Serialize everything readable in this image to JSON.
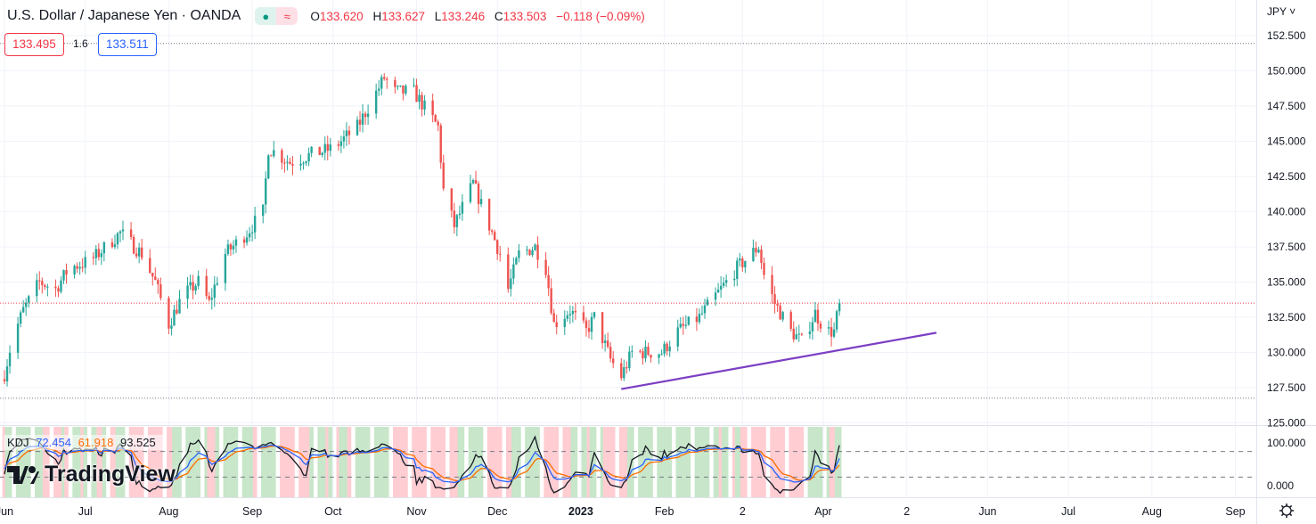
{
  "header": {
    "title": "U.S. Dollar / Japanese Yen · OANDA",
    "status_icons": [
      "market-open-dot-icon",
      "delayed-data-icon"
    ],
    "ohlc": {
      "o_label": "O",
      "o": "133.620",
      "h_label": "H",
      "h": "133.627",
      "l_label": "L",
      "l": "133.246",
      "c_label": "C",
      "c": "133.503",
      "change": "−0.118 (−0.09%)"
    }
  },
  "quote": {
    "sell": "133.495",
    "spread": "1.6",
    "buy": "133.511"
  },
  "currency": "JPY",
  "indicator": {
    "name": "KDJ",
    "k": "72.454",
    "d": "61.918",
    "j": "93.525"
  },
  "branding": "TradingView",
  "colors": {
    "up": "#26a69a",
    "down": "#ef5350",
    "k": "#2962ff",
    "d": "#ff6d00",
    "j": "#131722",
    "trendline": "#7b3fc4",
    "bull_bg": "#c8e6c9",
    "bear_bg": "#ffcdd2"
  },
  "chart_data": {
    "type": "candlestick",
    "price_axis": {
      "ticks": [
        "152.500",
        "150.000",
        "147.500",
        "145.000",
        "142.500",
        "140.000",
        "137.500",
        "135.000",
        "132.500",
        "130.000",
        "127.500",
        "125.000"
      ],
      "range": [
        125,
        152.5
      ]
    },
    "kdj_axis": {
      "ticks": [
        "100.000",
        "0.000"
      ]
    },
    "time_axis": {
      "ticks": [
        [
          "Jun",
          "2022-06-01"
        ],
        [
          "Jul",
          "2022-07-01"
        ],
        [
          "Aug",
          "2022-08-01"
        ],
        [
          "Sep",
          "2022-09-01"
        ],
        [
          "Oct",
          "2022-10-01"
        ],
        [
          "Nov",
          "2022-11-01"
        ],
        [
          "Dec",
          "2022-12-01"
        ],
        [
          "2023",
          "2023-01-01"
        ],
        [
          "Feb",
          "2023-02-01"
        ],
        [
          "2",
          "2023-03-02"
        ],
        [
          "Apr",
          "2023-04-01"
        ],
        [
          "2",
          "2023-05-02"
        ],
        [
          "Jun",
          "2023-06-01"
        ],
        [
          "Jul",
          "2023-07-01"
        ],
        [
          "Aug",
          "2023-08-01"
        ],
        [
          "Sep",
          "2023-09-01"
        ]
      ]
    },
    "close_path": [
      [
        "2022-06-01",
        128.5
      ],
      [
        "2022-06-04",
        131
      ],
      [
        "2022-06-08",
        133
      ],
      [
        "2022-06-14",
        135
      ],
      [
        "2022-06-20",
        134.5
      ],
      [
        "2022-06-25",
        136
      ],
      [
        "2022-07-03",
        136.5
      ],
      [
        "2022-07-14",
        138.5
      ],
      [
        "2022-07-22",
        137
      ],
      [
        "2022-07-27",
        135
      ],
      [
        "2022-08-01",
        132
      ],
      [
        "2022-08-06",
        134
      ],
      [
        "2022-08-12",
        135
      ],
      [
        "2022-08-16",
        133.5
      ],
      [
        "2022-08-22",
        137
      ],
      [
        "2022-08-30",
        138.5
      ],
      [
        "2022-09-05",
        140
      ],
      [
        "2022-09-07",
        144.5
      ],
      [
        "2022-09-15",
        143.5
      ],
      [
        "2022-09-22",
        144
      ],
      [
        "2022-10-01",
        144.5
      ],
      [
        "2022-10-10",
        146
      ],
      [
        "2022-10-20",
        149.5
      ],
      [
        "2022-10-24",
        148.5
      ],
      [
        "2022-10-31",
        148.5
      ],
      [
        "2022-11-09",
        146
      ],
      [
        "2022-11-11",
        141.5
      ],
      [
        "2022-11-15",
        139
      ],
      [
        "2022-11-22",
        142
      ],
      [
        "2022-11-28",
        139
      ],
      [
        "2022-12-02",
        137
      ],
      [
        "2022-12-05",
        134.5
      ],
      [
        "2022-12-09",
        137
      ],
      [
        "2022-12-15",
        137.5
      ],
      [
        "2022-12-19",
        136
      ],
      [
        "2022-12-22",
        132
      ],
      [
        "2022-12-28",
        133
      ],
      [
        "2023-01-03",
        131.5
      ],
      [
        "2023-01-06",
        132.5
      ],
      [
        "2023-01-12",
        129.5
      ],
      [
        "2023-01-16",
        128.3
      ],
      [
        "2023-01-20",
        130
      ],
      [
        "2023-01-31",
        130
      ],
      [
        "2023-02-06",
        131.5
      ],
      [
        "2023-02-14",
        132.5
      ],
      [
        "2023-02-20",
        134
      ],
      [
        "2023-02-28",
        136
      ],
      [
        "2023-03-08",
        137.5
      ],
      [
        "2023-03-10",
        135.5
      ],
      [
        "2023-03-14",
        133.5
      ],
      [
        "2023-03-20",
        131.5
      ],
      [
        "2023-03-24",
        130.8
      ],
      [
        "2023-03-29",
        132.8
      ],
      [
        "2023-04-02",
        131.5
      ],
      [
        "2023-04-05",
        131.5
      ],
      [
        "2023-04-07",
        133.5
      ]
    ],
    "high": 151.95,
    "low": 126.75,
    "last": 133.503,
    "trendline": [
      [
        "2023-01-16",
        127.4
      ],
      [
        "2023-05-13",
        131.4
      ]
    ]
  }
}
